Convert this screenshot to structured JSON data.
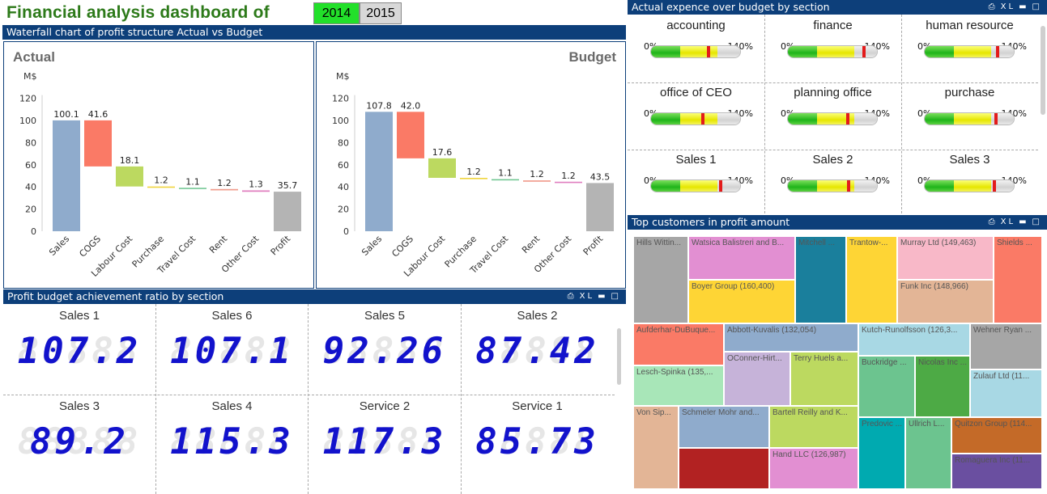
{
  "title": "Financial analysis dashboard of",
  "years": {
    "selected": "2014",
    "other": "2015"
  },
  "icons": {
    "print": "print-icon",
    "xl": "XL",
    "minimize": "minimize-icon",
    "maximize": "maximize-icon"
  },
  "waterfall_panel": {
    "header": "Waterfall chart of profit structure Actual vs Budget",
    "actual": {
      "title": "Actual",
      "unit": "M$"
    },
    "budget": {
      "title": "Budget",
      "unit": "M$"
    }
  },
  "chart_data": [
    {
      "type": "bar",
      "title": "Actual",
      "ylabel": "M$",
      "ylim": [
        0,
        120
      ],
      "yticks": [
        0,
        20,
        40,
        60,
        80,
        100,
        120
      ],
      "categories": [
        "Sales",
        "COGS",
        "Labour Cost",
        "Purchase",
        "Travel Cost",
        "Rent",
        "Other Cost",
        "Profit"
      ],
      "values": [
        100.1,
        41.6,
        18.1,
        1.2,
        1.1,
        1.2,
        1.3,
        35.7
      ],
      "labels": [
        "100.1",
        "41.6",
        "18.1",
        "1.2",
        "1.1",
        "1.2",
        "1.3",
        "35.7"
      ],
      "colors": [
        "#8fabcc",
        "#fa7a66",
        "#bcd960",
        "#f0d540",
        "#6cc48f",
        "#f09a8a",
        "#e080c0",
        "#b4b4b4"
      ]
    },
    {
      "type": "bar",
      "title": "Budget",
      "ylabel": "M$",
      "ylim": [
        0,
        120
      ],
      "yticks": [
        0,
        20,
        40,
        60,
        80,
        100,
        120
      ],
      "categories": [
        "Sales",
        "COGS",
        "Labour Cost",
        "Purchase",
        "Travel Cost",
        "Rent",
        "Other Cost",
        "Profit"
      ],
      "values": [
        107.8,
        42.0,
        17.6,
        1.2,
        1.1,
        1.2,
        1.2,
        43.5
      ],
      "labels": [
        "107.8",
        "42.0",
        "17.6",
        "1.2",
        "1.1",
        "1.2",
        "1.2",
        "43.5"
      ],
      "colors": [
        "#8fabcc",
        "#fa7a66",
        "#bcd960",
        "#f0d540",
        "#6cc48f",
        "#f09a8a",
        "#e080c0",
        "#b4b4b4"
      ]
    }
  ],
  "gauge_panel": {
    "header": "Actual expence over budget by section",
    "min_label": "0%",
    "max_label": "140%",
    "items": [
      {
        "name": "accounting",
        "value": 0.63
      },
      {
        "name": "finance",
        "value": 0.84
      },
      {
        "name": "human resource",
        "value": 0.8
      },
      {
        "name": "office of CEO",
        "value": 0.56
      },
      {
        "name": "planning office",
        "value": 0.65
      },
      {
        "name": "purchase",
        "value": 0.78
      },
      {
        "name": "Sales 1",
        "value": 0.76
      },
      {
        "name": "Sales 2",
        "value": 0.66
      },
      {
        "name": "Sales 3",
        "value": 0.76
      }
    ]
  },
  "ratio_panel": {
    "header": "Profit budget achievement ratio by section",
    "items": [
      {
        "name": "Sales 1",
        "value": "107.2"
      },
      {
        "name": "Sales 6",
        "value": "107.1"
      },
      {
        "name": "Sales 5",
        "value": "92.26"
      },
      {
        "name": "Sales 2",
        "value": "87.42"
      },
      {
        "name": "Sales 3",
        "value": "89.2"
      },
      {
        "name": "Sales 4",
        "value": "115.3"
      },
      {
        "name": "Service 2",
        "value": "117.3"
      },
      {
        "name": "Service 1",
        "value": "85.73"
      }
    ]
  },
  "treemap_panel": {
    "header": "Top customers in profit amount",
    "items": [
      {
        "label": "Hills Wittin...",
        "color": "#a6a6a6"
      },
      {
        "label": "Watsica Balistreri and B...",
        "color": "#e28fd2"
      },
      {
        "label": "Boyer Group (160,400)",
        "color": "#fed535"
      },
      {
        "label": "Mitchell ...",
        "color": "#1a7f9c"
      },
      {
        "label": "Trantow-...",
        "color": "#fed535"
      },
      {
        "label": "Murray Ltd (149,463)",
        "color": "#f8b8c8"
      },
      {
        "label": "Funk Inc (148,966)",
        "color": "#e3b596"
      },
      {
        "label": "Shields ...",
        "color": "#fa7a66"
      },
      {
        "label": "Aufderhar-DuBuque...",
        "color": "#fa7a66"
      },
      {
        "label": "Abbott-Kuvalis (132,054)",
        "color": "#8fabcc"
      },
      {
        "label": "Kutch-Runolfsson (126,3...",
        "color": "#a8d8e4"
      },
      {
        "label": "Wehner Ryan ...",
        "color": "#a6a6a6"
      },
      {
        "label": "Lesch-Spinka (135,...",
        "color": "#a8e6b8"
      },
      {
        "label": "OConner-Hirt...",
        "color": "#c6b3d9"
      },
      {
        "label": "Terry Huels a...",
        "color": "#bcd960"
      },
      {
        "label": "Buckridge ...",
        "color": "#6cc48f"
      },
      {
        "label": "Nicolas Inc ...",
        "color": "#4daa45"
      },
      {
        "label": "Zulauf Ltd (11...",
        "color": "#a8d8e4"
      },
      {
        "label": "Von Sip...",
        "color": "#e3b596"
      },
      {
        "label": "Schmeler Mohr and...",
        "color": "#8fabcc"
      },
      {
        "label": "Bartell Reilly and K...",
        "color": "#bcd960"
      },
      {
        "label": "Predovic ...",
        "color": "#00aab0"
      },
      {
        "label": "Ullrich L...",
        "color": "#6cc48f"
      },
      {
        "label": "Quitzon Group (114...",
        "color": "#c46a28"
      },
      {
        "label": "",
        "color": "#b22222"
      },
      {
        "label": "Hand LLC (126,987)",
        "color": "#e28fd2"
      },
      {
        "label": "Romaguera Inc (11...",
        "color": "#6a4fa0"
      }
    ]
  }
}
